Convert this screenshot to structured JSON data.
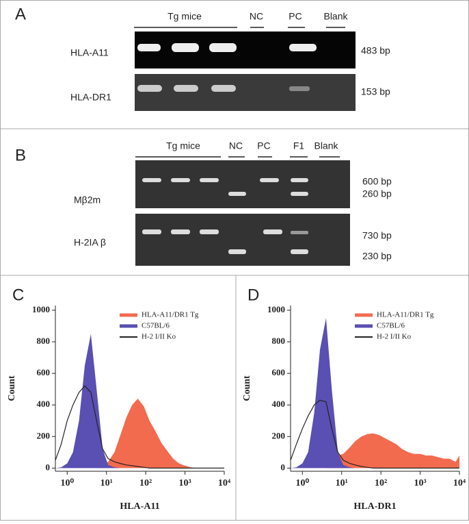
{
  "panel_a": {
    "label": "A",
    "groups": [
      "Tg mice",
      "NC",
      "PC",
      "Blank"
    ],
    "rows": [
      {
        "name": "HLA-A11",
        "size": "483 bp"
      },
      {
        "name": "HLA-DR1",
        "size": "153 bp"
      }
    ]
  },
  "panel_b": {
    "label": "B",
    "groups": [
      "Tg mice",
      "NC",
      "PC",
      "F1",
      "Blank"
    ],
    "rows": [
      {
        "name": "Mβ2m",
        "sizes": [
          "600 bp",
          "260 bp"
        ]
      },
      {
        "name": "H-2IA β",
        "sizes": [
          "730 bp",
          "230 bp"
        ]
      }
    ]
  },
  "chart_data": [
    {
      "type": "area",
      "panel": "C",
      "x_label": "HLA-A11",
      "y_label": "Count",
      "log_x": true,
      "legend": "top-right",
      "xlim": [
        0.5,
        10000
      ],
      "xticks": [
        {
          "value": 1,
          "label": "10⁰"
        },
        {
          "value": 10,
          "label": "10¹"
        },
        {
          "value": 100,
          "label": "10²"
        },
        {
          "value": 1000,
          "label": "10³"
        },
        {
          "value": 10000,
          "label": "10⁴"
        }
      ],
      "ylim": [
        -20,
        1030
      ],
      "yticks": [
        0,
        200,
        400,
        600,
        800,
        1000
      ],
      "x": [
        0.5,
        0.7,
        1,
        1.4,
        2,
        2.8,
        4,
        5.6,
        8,
        11,
        16,
        22,
        32,
        45,
        63,
        90,
        125,
        180,
        250,
        350,
        500,
        700,
        1000,
        1400,
        2000,
        2800,
        4000,
        5600,
        8000,
        10000
      ],
      "series": [
        {
          "name": "HLA-A11/DR1 Tg",
          "color": "#f26b4f",
          "fill": true,
          "values": [
            0,
            0,
            0,
            0,
            0,
            0,
            0,
            0,
            10,
            40,
            100,
            200,
            320,
            400,
            440,
            390,
            300,
            230,
            160,
            110,
            60,
            30,
            15,
            5,
            0,
            0,
            0,
            0,
            0,
            0
          ]
        },
        {
          "name": "C57BL/6",
          "color": "#5a4fb3",
          "fill": true,
          "values": [
            0,
            5,
            30,
            100,
            300,
            650,
            850,
            500,
            120,
            20,
            5,
            0,
            0,
            0,
            0,
            0,
            0,
            0,
            0,
            0,
            0,
            0,
            0,
            0,
            0,
            0,
            0,
            0,
            0,
            0
          ]
        },
        {
          "name": "H-2 I/II Ko",
          "color": "#222222",
          "fill": false,
          "values": [
            50,
            150,
            300,
            400,
            480,
            520,
            480,
            300,
            120,
            60,
            40,
            30,
            20,
            15,
            10,
            5,
            0,
            0,
            0,
            0,
            0,
            0,
            0,
            0,
            0,
            0,
            0,
            0,
            0,
            0
          ]
        }
      ]
    },
    {
      "type": "area",
      "panel": "D",
      "x_label": "HLA-DR1",
      "y_label": "Count",
      "log_x": true,
      "legend": "top-right",
      "xlim": [
        0.5,
        10000
      ],
      "xticks": [
        {
          "value": 1,
          "label": "10⁰"
        },
        {
          "value": 10,
          "label": "10¹"
        },
        {
          "value": 100,
          "label": "10²"
        },
        {
          "value": 1000,
          "label": "10³"
        },
        {
          "value": 10000,
          "label": "10⁴"
        }
      ],
      "ylim": [
        -20,
        1030
      ],
      "yticks": [
        0,
        200,
        400,
        600,
        800,
        1000
      ],
      "x": [
        0.5,
        0.7,
        1,
        1.4,
        2,
        2.8,
        4,
        5.6,
        8,
        11,
        16,
        22,
        32,
        45,
        63,
        90,
        125,
        180,
        250,
        350,
        500,
        700,
        1000,
        1400,
        2000,
        2800,
        4000,
        5600,
        8000,
        10000
      ],
      "series": [
        {
          "name": "HLA-A11/DR1 Tg",
          "color": "#f26b4f",
          "fill": true,
          "values": [
            0,
            0,
            0,
            0,
            0,
            0,
            0,
            60,
            80,
            90,
            130,
            170,
            200,
            215,
            220,
            210,
            190,
            170,
            150,
            120,
            100,
            90,
            90,
            80,
            80,
            70,
            60,
            60,
            40,
            80
          ]
        },
        {
          "name": "C57BL/6",
          "color": "#5a4fb3",
          "fill": true,
          "values": [
            0,
            5,
            30,
            100,
            350,
            750,
            950,
            500,
            100,
            20,
            5,
            0,
            0,
            0,
            0,
            0,
            0,
            0,
            0,
            0,
            0,
            0,
            0,
            0,
            0,
            0,
            0,
            0,
            0,
            0
          ]
        },
        {
          "name": "H-2 I/II Ko",
          "color": "#222222",
          "fill": false,
          "values": [
            50,
            150,
            250,
            330,
            400,
            430,
            420,
            250,
            100,
            50,
            30,
            20,
            10,
            5,
            0,
            0,
            0,
            0,
            0,
            0,
            0,
            0,
            0,
            0,
            0,
            0,
            0,
            0,
            0,
            0
          ]
        }
      ]
    }
  ]
}
